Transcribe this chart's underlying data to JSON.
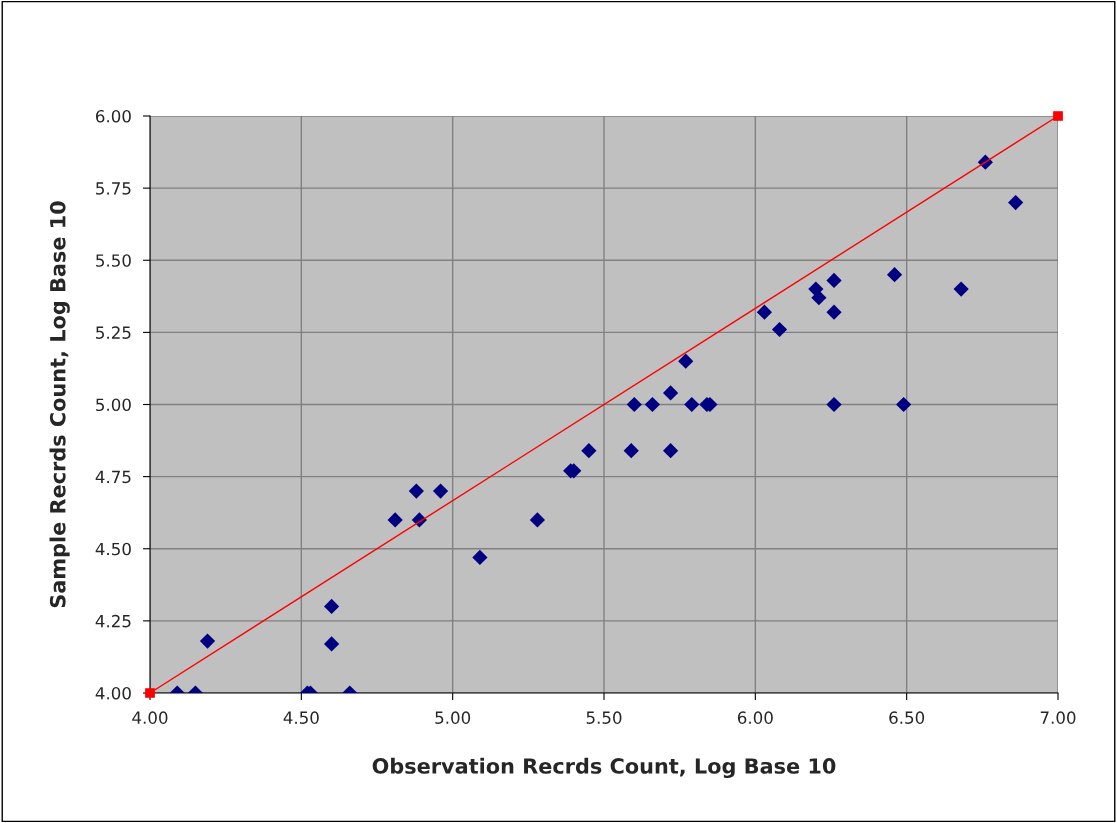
{
  "chart_data": {
    "type": "scatter",
    "xlabel": "Observation Recrds Count, Log Base 10",
    "ylabel": "Sample Recrds Count, Log Base 10",
    "xlim": [
      4,
      7
    ],
    "ylim": [
      4,
      6
    ],
    "xticks": [
      {
        "value": 4,
        "label": "4.00"
      },
      {
        "value": 4.5,
        "label": "4.50"
      },
      {
        "value": 5,
        "label": "5.00"
      },
      {
        "value": 5.5,
        "label": "5.50"
      },
      {
        "value": 6,
        "label": "6.00"
      },
      {
        "value": 6.5,
        "label": "6.50"
      },
      {
        "value": 7,
        "label": "7.00"
      }
    ],
    "yticks": [
      {
        "value": 4,
        "label": "4.00"
      },
      {
        "value": 4.25,
        "label": "4.25"
      },
      {
        "value": 4.5,
        "label": "4.50"
      },
      {
        "value": 4.75,
        "label": "4.75"
      },
      {
        "value": 5,
        "label": "5.00"
      },
      {
        "value": 5.25,
        "label": "5.25"
      },
      {
        "value": 5.5,
        "label": "5.50"
      },
      {
        "value": 5.75,
        "label": "5.75"
      },
      {
        "value": 6,
        "label": "6.00"
      }
    ],
    "grid": true,
    "legend": false,
    "series": [
      {
        "color": "#000080",
        "marker": "diamond",
        "x": [
          4.09,
          4.15,
          4.19,
          4.52,
          4.53,
          4.66,
          4.6,
          4.6,
          4.81,
          4.88,
          4.89,
          4.96,
          5.09,
          5.28,
          5.39,
          5.4,
          5.45,
          5.59,
          5.6,
          5.66,
          5.72,
          5.72,
          5.77,
          5.79,
          5.84,
          5.85,
          6.26,
          6.49,
          6.76,
          6.86,
          6.03,
          6.08,
          6.2,
          6.21,
          6.26,
          6.26,
          6.46,
          6.68
        ],
        "values": [
          4.0,
          4.0,
          4.18,
          4.0,
          4.0,
          4.0,
          4.3,
          4.17,
          4.6,
          4.7,
          4.6,
          4.7,
          4.47,
          4.6,
          4.77,
          4.77,
          4.84,
          4.84,
          5.0,
          5.0,
          5.04,
          4.84,
          5.15,
          5.0,
          5.0,
          5.0,
          5.0,
          5.0,
          5.84,
          5.7,
          5.32,
          5.26,
          5.4,
          5.37,
          5.43,
          5.32,
          5.45,
          5.4
        ]
      },
      {
        "type": "line",
        "color": "#ff0000",
        "marker": "square",
        "line_style": "solid",
        "x": [
          4,
          7
        ],
        "values": [
          4,
          6
        ]
      }
    ]
  }
}
